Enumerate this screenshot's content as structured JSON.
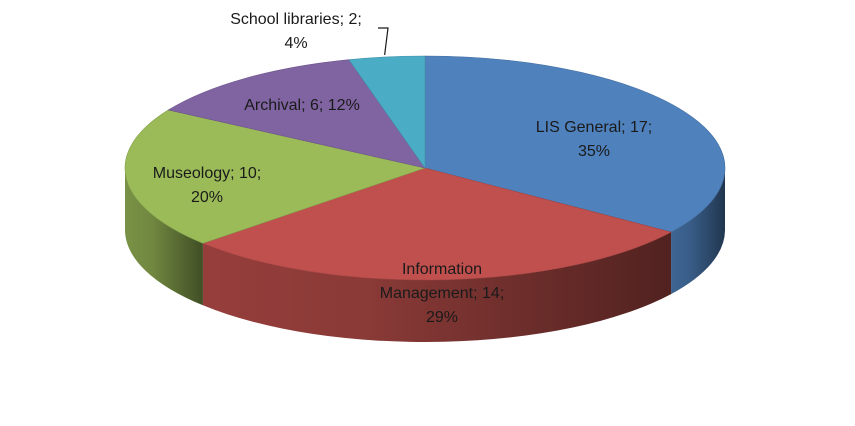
{
  "chart_data": {
    "type": "pie",
    "style": "3d",
    "slices": [
      {
        "name": "LIS General",
        "value": 17,
        "percent": 35,
        "color": "#4F81BD",
        "label_lines": [
          "LIS General; 17;",
          "35%"
        ]
      },
      {
        "name": "Information Management",
        "value": 14,
        "percent": 29,
        "color": "#C0504D",
        "label_lines": [
          "Information",
          "Management; 14;",
          "29%"
        ]
      },
      {
        "name": "Museology",
        "value": 10,
        "percent": 20,
        "color": "#9BBB59",
        "label_lines": [
          "Museology; 10;",
          "20%"
        ]
      },
      {
        "name": "Archival",
        "value": 6,
        "percent": 12,
        "color": "#8064A2",
        "label_lines": [
          "Archival; 6; 12%"
        ]
      },
      {
        "name": "School libraries",
        "value": 2,
        "percent": 4,
        "color": "#4BACC6",
        "label_lines": [
          "School libraries; 2;",
          "4%"
        ]
      }
    ],
    "legend": "none",
    "title": ""
  }
}
